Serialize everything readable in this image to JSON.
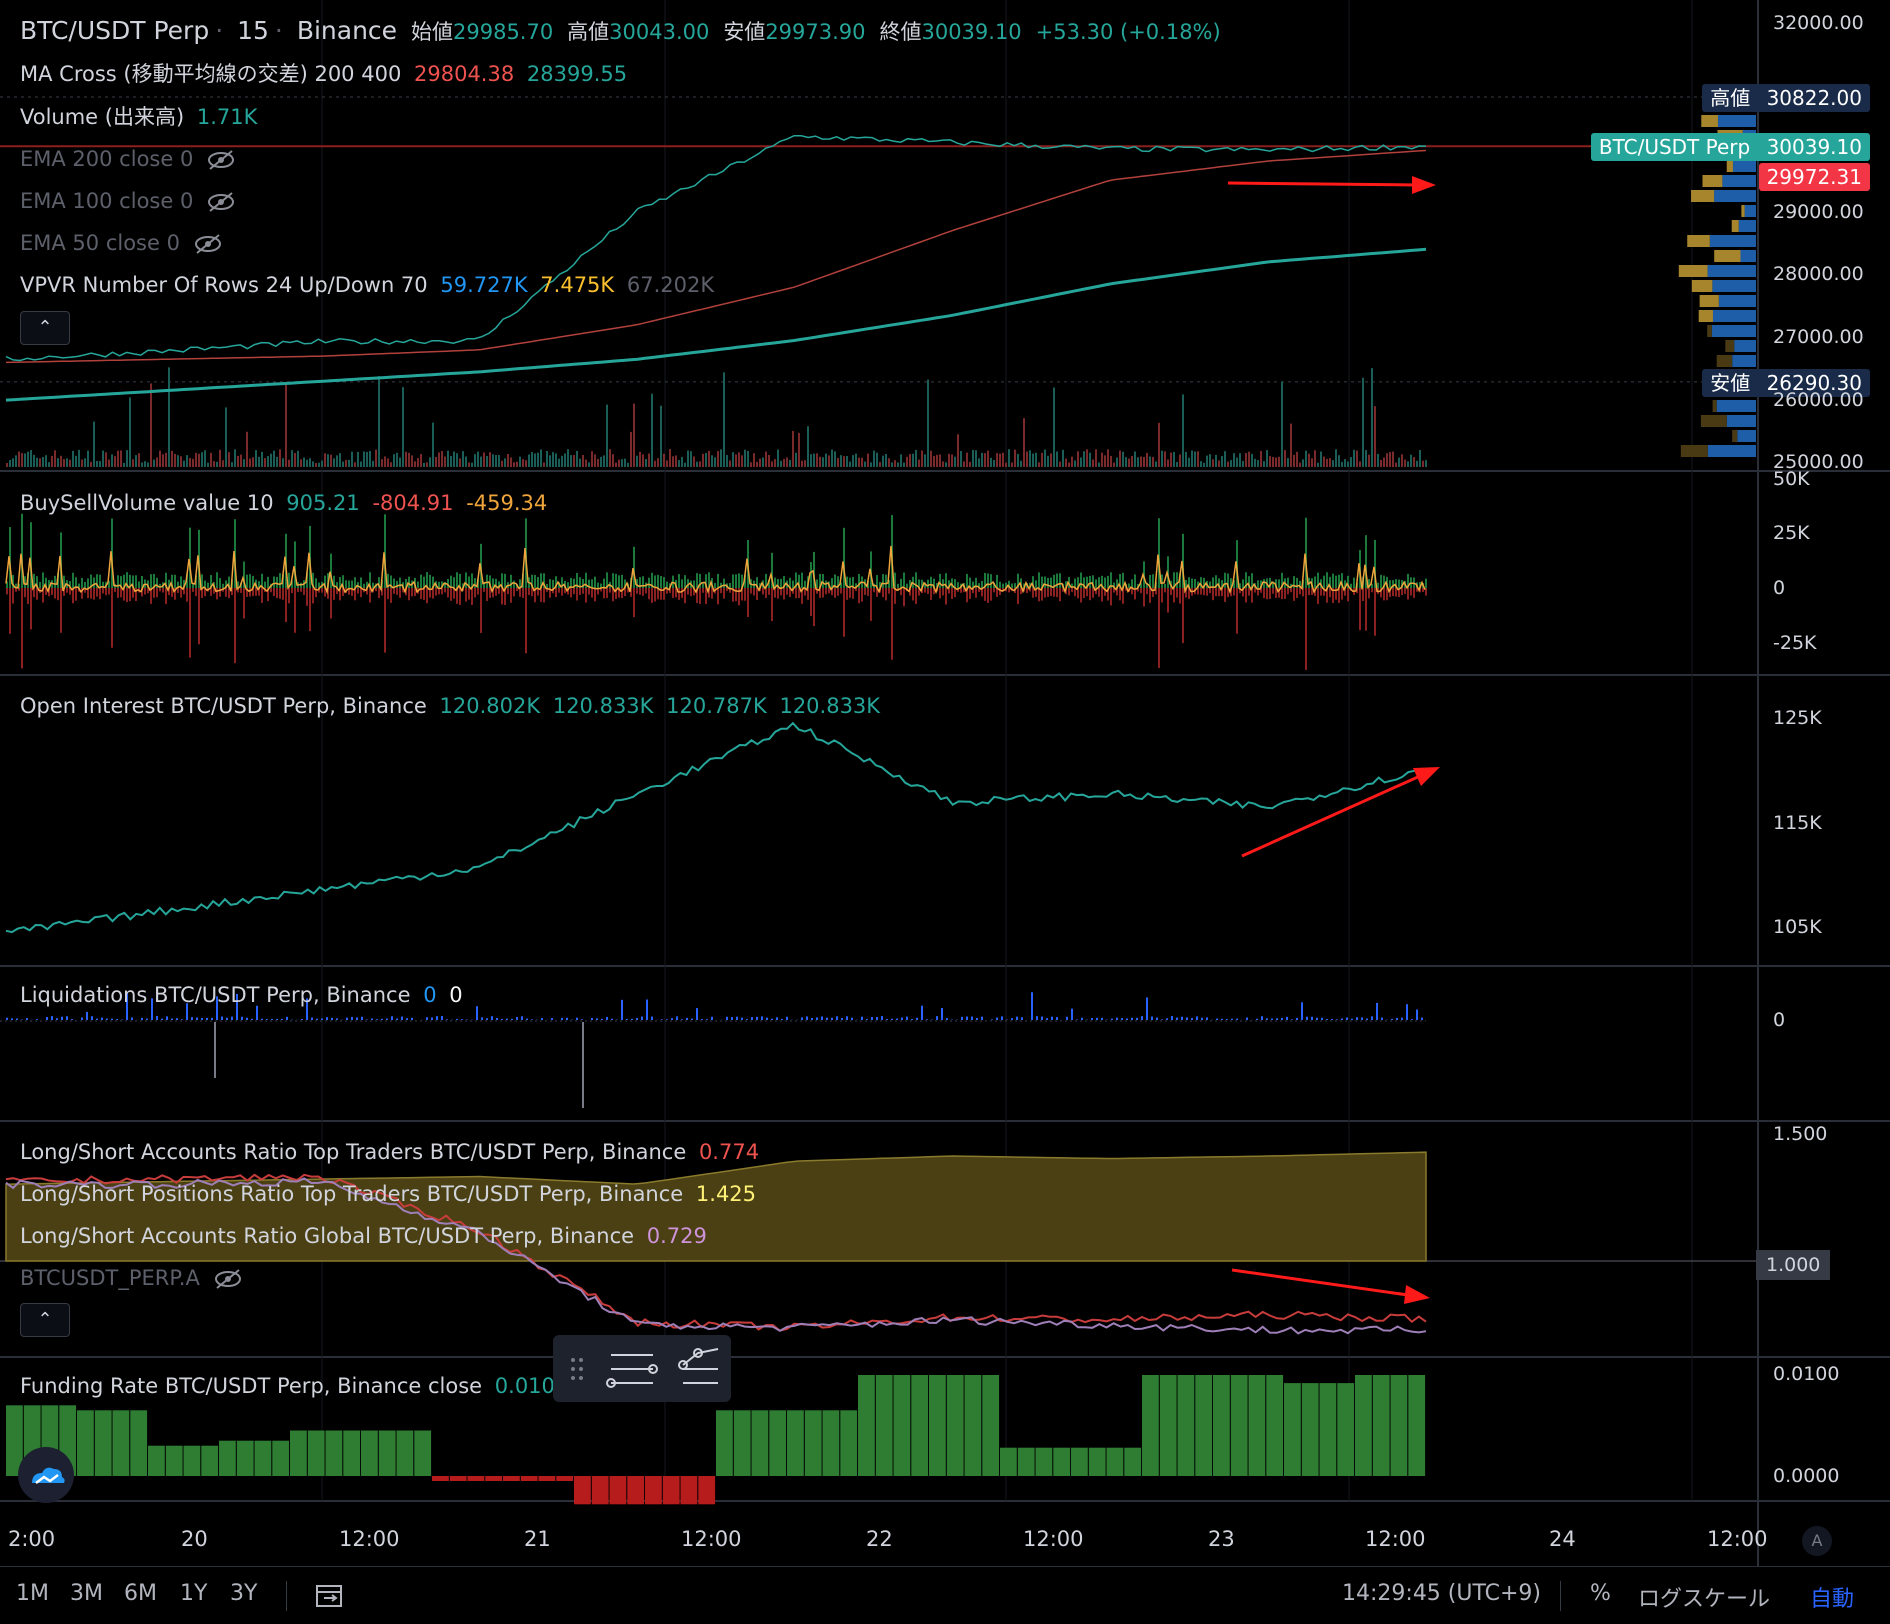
{
  "header": {
    "symbol": "BTC/USDT Perp",
    "interval": "15",
    "exchange": "Binance",
    "open_label": "始値",
    "open": "29985.70",
    "high_label": "高値",
    "high": "30043.00",
    "low_label": "安値",
    "low": "29973.90",
    "close_label": "終値",
    "close": "30039.10",
    "change": "+53.30 (+0.18%)"
  },
  "indicators": {
    "ma_cross": {
      "label": "MA Cross (移動平均線の交差) 200 400",
      "v1": "29804.38",
      "v2": "28399.55"
    },
    "volume": {
      "label": "Volume (出来高)",
      "value": "1.71K"
    },
    "ema200": "EMA 200 close 0",
    "ema100": "EMA 100 close 0",
    "ema50": "EMA 50 close 0",
    "vpvr": {
      "label": "VPVR Number Of Rows 24 Up/Down 70",
      "up": "59.727K",
      "down": "7.475K",
      "total": "67.202K"
    },
    "buysell": {
      "label": "BuySellVolume value 10",
      "v1": "905.21",
      "v2": "-804.91",
      "v3": "-459.34"
    },
    "open_interest": {
      "label": "Open Interest BTC/USDT Perp, Binance",
      "v1": "120.802K",
      "v2": "120.833K",
      "v3": "120.787K",
      "v4": "120.833K"
    },
    "liquidations": {
      "label": "Liquidations BTC/USDT Perp, Binance",
      "v1": "0",
      "v2": "0"
    },
    "ls_accounts_top": {
      "label": "Long/Short Accounts Ratio Top Traders BTC/USDT Perp, Binance",
      "value": "0.774"
    },
    "ls_positions_top": {
      "label": "Long/Short Positions Ratio Top Traders BTC/USDT Perp, Binance",
      "value": "1.425"
    },
    "ls_accounts_global": {
      "label": "Long/Short Accounts Ratio Global BTC/USDT Perp, Binance",
      "value": "0.729"
    },
    "btcusdt_perp_a": "BTCUSDT_PERP.A",
    "funding": {
      "label": "Funding Rate BTC/USDT Perp, Binance close",
      "value": "0.0100"
    }
  },
  "price_tags": {
    "high_label": "高値",
    "high_value": "30822.00",
    "symbol_label": "BTC/USDT Perp",
    "last_value": "30039.10",
    "ma_value": "29972.31",
    "low_label": "安値",
    "low_value": "26290.30"
  },
  "axes": {
    "price_ticks": [
      "32000.00",
      "29000.00",
      "28000.00",
      "27000.00",
      "26000.00",
      "25000.00"
    ],
    "buysell_ticks": [
      "50K",
      "25K",
      "0",
      "-25K"
    ],
    "oi_ticks": [
      "125K",
      "115K",
      "105K"
    ],
    "liq_ticks": [
      "0"
    ],
    "ratio_ticks": [
      "1.500",
      "1.000"
    ],
    "funding_ticks": [
      "0.0100",
      "0.0000"
    ],
    "time_ticks": [
      "2:00",
      "20",
      "12:00",
      "21",
      "12:00",
      "22",
      "12:00",
      "23",
      "12:00",
      "24",
      "12:00"
    ]
  },
  "bottom_bar": {
    "ranges": [
      "1M",
      "3M",
      "6M",
      "1Y",
      "3Y"
    ],
    "clock": "14:29:45 (UTC+9)",
    "percent": "%",
    "log_scale": "ログスケール",
    "auto": "自動",
    "auto_scale_letter": "A"
  },
  "colors": {
    "background": "#000000",
    "up": "#26a69a",
    "down": "#ef5350",
    "ma_red": "#b2413c",
    "ma_teal": "#26a69a",
    "last_price_tag": "#26a69a",
    "ma_tag": "#f23645",
    "high_low_tag": "#1a2b4a",
    "oi_line": "#26a69a",
    "buysell_line": "#f0a53c",
    "ratio_fill": "#4a4014",
    "ratio_line_red": "#c83c3c",
    "ratio_line_purple": "#9e7fb7",
    "funding_pos": "#2e7d32",
    "funding_neg": "#b71c1c",
    "annotation_arrow": "#ff1a1a",
    "auto_active": "#2962ff"
  },
  "chart_data": [
    {
      "type": "line",
      "panel": "price",
      "title": "BTC/USDT Perp · 15 · Binance",
      "x": [
        "19 2:00",
        "20",
        "20 12:00",
        "21",
        "21 12:00",
        "22",
        "22 12:00",
        "23",
        "23 12:00",
        "24"
      ],
      "series": [
        {
          "name": "BTC/USDT Perp",
          "values": [
            26650,
            26780,
            26930,
            26950,
            29000,
            30200,
            30100,
            30000,
            29980,
            30039.1
          ]
        },
        {
          "name": "MA Cross 200",
          "values": [
            26600,
            26650,
            26700,
            26800,
            27200,
            27800,
            28700,
            29500,
            29804.38,
            29972.31
          ]
        },
        {
          "name": "MA Cross 400",
          "values": [
            26000,
            26150,
            26300,
            26450,
            26650,
            26950,
            27350,
            27850,
            28200,
            28399.55
          ]
        }
      ],
      "ylim": [
        25000,
        32000
      ],
      "high": 30822.0,
      "low": 26290.3
    },
    {
      "type": "line",
      "panel": "open_interest",
      "title": "Open Interest BTC/USDT Perp, Binance",
      "x": [
        "19 2:00",
        "20",
        "20 12:00",
        "21",
        "21 12:00",
        "22",
        "22 12:00",
        "23",
        "23 12:00",
        "24"
      ],
      "series": [
        {
          "name": "Open Interest",
          "values": [
            102000,
            104500,
            107000,
            109500,
            118000,
            126000,
            117000,
            118000,
            116500,
            120833
          ]
        }
      ],
      "ylim": [
        100000,
        130000
      ]
    },
    {
      "type": "area",
      "panel": "long_short_ratio",
      "x": [
        "19 2:00",
        "20",
        "20 12:00",
        "21",
        "21 12:00",
        "22",
        "22 12:00",
        "23",
        "23 12:00",
        "24"
      ],
      "series": [
        {
          "name": "Long/Short Positions Ratio Top Traders",
          "values": [
            1.3,
            1.31,
            1.32,
            1.33,
            1.3,
            1.39,
            1.41,
            1.4,
            1.41,
            1.425
          ]
        },
        {
          "name": "Long/Short Accounts Ratio Top Traders",
          "values": [
            1.31,
            1.32,
            1.33,
            1.12,
            0.76,
            0.74,
            0.78,
            0.77,
            0.79,
            0.774
          ]
        },
        {
          "name": "Long/Short Accounts Ratio Global",
          "values": [
            1.3,
            1.3,
            1.31,
            1.11,
            0.75,
            0.74,
            0.77,
            0.75,
            0.73,
            0.729
          ]
        }
      ],
      "ylim": [
        0.6,
        1.5
      ]
    },
    {
      "type": "bar",
      "panel": "funding_rate",
      "title": "Funding Rate BTC/USDT Perp, Binance close",
      "categories": [
        "19 2:00",
        "19 8:00",
        "19 14:00",
        "19 20:00",
        "20 2:00",
        "20 8:00",
        "20 14:00",
        "20 20:00",
        "21 2:00",
        "21 8:00",
        "21 14:00",
        "21 20:00",
        "22 2:00",
        "22 8:00",
        "22 14:00",
        "22 20:00",
        "23 2:00",
        "23 8:00",
        "23 14:00",
        "23 20:00"
      ],
      "values": [
        0.007,
        0.0065,
        0.003,
        0.0035,
        0.0045,
        0.0045,
        -0.0005,
        -0.0005,
        -0.0028,
        -0.0028,
        0.0065,
        0.0065,
        0.01,
        0.01,
        0.0028,
        0.0028,
        0.01,
        0.01,
        0.0092,
        0.01
      ],
      "ylim": [
        -0.003,
        0.0105
      ]
    }
  ]
}
